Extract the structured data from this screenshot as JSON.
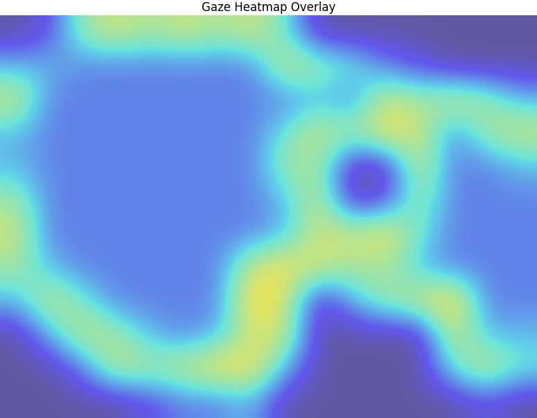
{
  "chart_data": {
    "type": "heatmap",
    "title": "Gaze Heatmap Overlay",
    "tick_labels": false,
    "color_range": [
      0,
      1
    ],
    "cells": [
      [
        0,
        0.1,
        0.5,
        0.6,
        0.5,
        0.6,
        0.5,
        0.6,
        0.4,
        0,
        0,
        0,
        0,
        0,
        0,
        0
      ],
      [
        0.3,
        0.3,
        0.2,
        0.2,
        0.2,
        0.2,
        0.2,
        0.2,
        0.6,
        0.5,
        0.4,
        0.2,
        0.1,
        0,
        0,
        0
      ],
      [
        0.6,
        0.2,
        0.2,
        0.2,
        0.2,
        0.2,
        0.2,
        0.2,
        0.2,
        0.3,
        0.2,
        0.6,
        0.5,
        0.6,
        0.5,
        0.3
      ],
      [
        0.3,
        0.2,
        0.2,
        0.2,
        0.2,
        0.2,
        0.2,
        0.2,
        0.4,
        0.6,
        0.5,
        0.7,
        0.6,
        0.2,
        0.5,
        0.6
      ],
      [
        0.3,
        0.2,
        0.2,
        0.2,
        0.2,
        0.2,
        0.2,
        0.2,
        0.5,
        0.5,
        0,
        0,
        0.6,
        0.2,
        0.2,
        0.3
      ],
      [
        0.5,
        0.2,
        0.2,
        0.2,
        0.2,
        0.2,
        0.2,
        0.2,
        0.3,
        0.6,
        0,
        0.1,
        0.5,
        0.2,
        0.2,
        0.2
      ],
      [
        0.6,
        0.2,
        0.2,
        0.2,
        0.2,
        0.2,
        0.2,
        0.2,
        0.3,
        0.6,
        0.6,
        0.7,
        0.4,
        0.2,
        0.2,
        0.2
      ],
      [
        0.5,
        0.3,
        0.2,
        0.2,
        0.2,
        0.2,
        0.2,
        0.6,
        0.7,
        0.6,
        0.5,
        0.5,
        0.3,
        0.2,
        0.2,
        0.2
      ],
      [
        0.3,
        0.6,
        0.4,
        0.2,
        0.2,
        0.2,
        0.2,
        0.75,
        0.6,
        0,
        0.3,
        0.5,
        0.6,
        0.75,
        0.2,
        0.2
      ],
      [
        0,
        0.3,
        0.6,
        0.5,
        0.3,
        0.2,
        0.3,
        0.6,
        0.6,
        0,
        0,
        0,
        0,
        0.6,
        0.3,
        0.3
      ],
      [
        0,
        0,
        0.2,
        0.6,
        0.5,
        0.6,
        0.7,
        0.7,
        0.3,
        0,
        0,
        0,
        0,
        0.4,
        0.6,
        0.4
      ],
      [
        0,
        0,
        0,
        0,
        0.1,
        0.2,
        0.2,
        0.3,
        0,
        0,
        0,
        0,
        0,
        0,
        0.1,
        0
      ]
    ]
  }
}
